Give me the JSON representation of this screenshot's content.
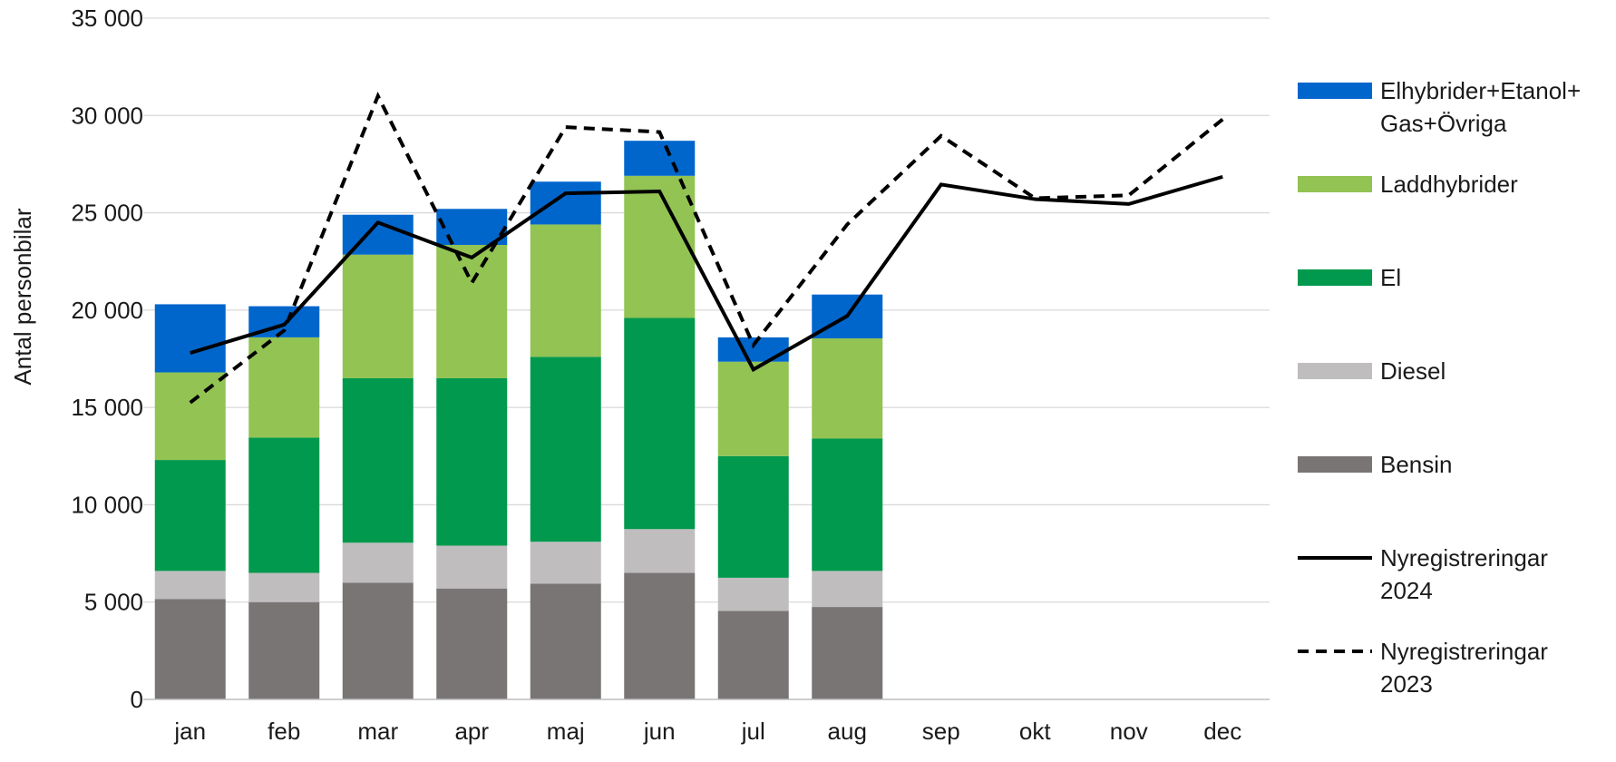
{
  "chart_data": {
    "type": "bar",
    "stacked": true,
    "ylabel": "Antal personbilar",
    "ylim": [
      0,
      35000
    ],
    "yticks": [
      0,
      5000,
      10000,
      15000,
      20000,
      25000,
      30000,
      35000
    ],
    "ytick_labels": [
      "0",
      "5 000",
      "10 000",
      "15 000",
      "20 000",
      "25 000",
      "30 000",
      "35 000"
    ],
    "grid": true,
    "legend_position": "right",
    "categories": [
      "jan",
      "feb",
      "mar",
      "apr",
      "maj",
      "jun",
      "jul",
      "aug",
      "sep",
      "okt",
      "nov",
      "dec"
    ],
    "series": [
      {
        "name": "Bensin",
        "color": "#797575",
        "values": [
          5150,
          5000,
          6000,
          5700,
          5950,
          6500,
          4550,
          4750,
          null,
          null,
          null,
          null
        ]
      },
      {
        "name": "Diesel",
        "color": "#bfbdbe",
        "values": [
          1450,
          1500,
          2050,
          2200,
          2150,
          2250,
          1700,
          1850,
          null,
          null,
          null,
          null
        ]
      },
      {
        "name": "El",
        "color": "#00994d",
        "values": [
          5700,
          6950,
          8450,
          8600,
          9500,
          10850,
          6250,
          6800,
          null,
          null,
          null,
          null
        ]
      },
      {
        "name": "Laddhybrider",
        "color": "#92c353",
        "values": [
          4500,
          5150,
          6350,
          6850,
          6800,
          7300,
          4850,
          5150,
          null,
          null,
          null,
          null
        ]
      },
      {
        "name": "Elhybrider+Etanol+ Gas+Övriga",
        "color": "#0066cc",
        "values": [
          3500,
          1600,
          2050,
          1850,
          2200,
          1800,
          1250,
          2250,
          null,
          null,
          null,
          null
        ]
      }
    ],
    "lines": [
      {
        "name": "Nyregistreringar 2024",
        "color": "#000000",
        "dash": "solid",
        "values": [
          17800,
          19250,
          24500,
          22700,
          26000,
          26100,
          16950,
          19700,
          26450,
          25700,
          25450,
          26850
        ]
      },
      {
        "name": "Nyregistreringar 2023",
        "color": "#000000",
        "dash": "dashed",
        "values": [
          15250,
          18950,
          31000,
          21400,
          29400,
          29150,
          18200,
          24400,
          28950,
          25750,
          25900,
          29800
        ]
      }
    ],
    "legend_order": [
      "Elhybrider+Etanol+ Gas+Övriga",
      "Laddhybrider",
      "El",
      "Diesel",
      "Bensin",
      "Nyregistreringar 2024",
      "Nyregistreringar 2023"
    ]
  }
}
